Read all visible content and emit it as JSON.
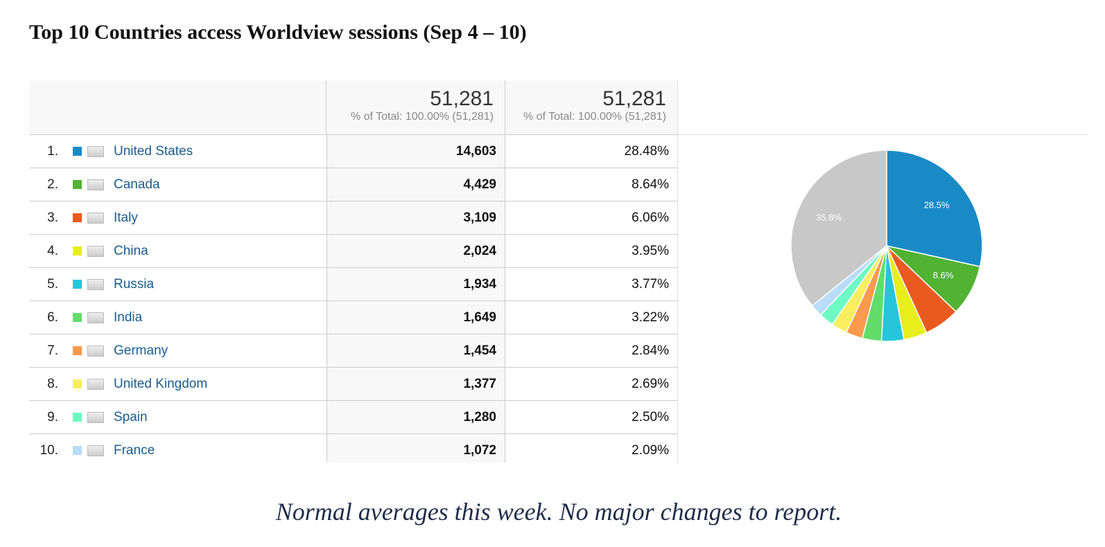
{
  "header": {
    "title": "Top 10 Countries access Worldview sessions (Sep 4 – 10)"
  },
  "table": {
    "totals": [
      {
        "value": "51,281",
        "sub": "% of Total: 100.00% (51,281)"
      },
      {
        "value": "51,281",
        "sub": "% of Total: 100.00% (51,281)"
      }
    ],
    "rows": [
      {
        "rank": "1.",
        "name": "United States",
        "sessions": "14,603",
        "percent": "28.48%"
      },
      {
        "rank": "2.",
        "name": "Canada",
        "sessions": "4,429",
        "percent": "8.64%"
      },
      {
        "rank": "3.",
        "name": "Italy",
        "sessions": "3,109",
        "percent": "6.06%"
      },
      {
        "rank": "4.",
        "name": "China",
        "sessions": "2,024",
        "percent": "3.95%"
      },
      {
        "rank": "5.",
        "name": "Russia",
        "sessions": "1,934",
        "percent": "3.77%"
      },
      {
        "rank": "6.",
        "name": "India",
        "sessions": "1,649",
        "percent": "3.22%"
      },
      {
        "rank": "7.",
        "name": "Germany",
        "sessions": "1,454",
        "percent": "2.84%"
      },
      {
        "rank": "8.",
        "name": "United Kingdom",
        "sessions": "1,377",
        "percent": "2.69%"
      },
      {
        "rank": "9.",
        "name": "Spain",
        "sessions": "1,280",
        "percent": "2.50%"
      },
      {
        "rank": "10.",
        "name": "France",
        "sessions": "1,072",
        "percent": "2.09%"
      }
    ]
  },
  "chart_data": {
    "type": "pie",
    "values": [
      28.5,
      8.6,
      6.06,
      3.95,
      3.77,
      3.22,
      2.84,
      2.69,
      2.5,
      2.09,
      35.8
    ],
    "value_labels": [
      "28.5%",
      "8.6%",
      null,
      null,
      null,
      null,
      null,
      null,
      null,
      null,
      "35.8%"
    ],
    "colors": [
      "#1a8ac6",
      "#52b232",
      "#ea5a1e",
      "#e8ee1c",
      "#27c5da",
      "#62dc6a",
      "#f99a4c",
      "#f8ee5e",
      "#6efac4",
      "#b8ddf8",
      "#c8c8c8"
    ]
  },
  "footer": {
    "note": "Normal averages this week.  No major changes to report."
  }
}
